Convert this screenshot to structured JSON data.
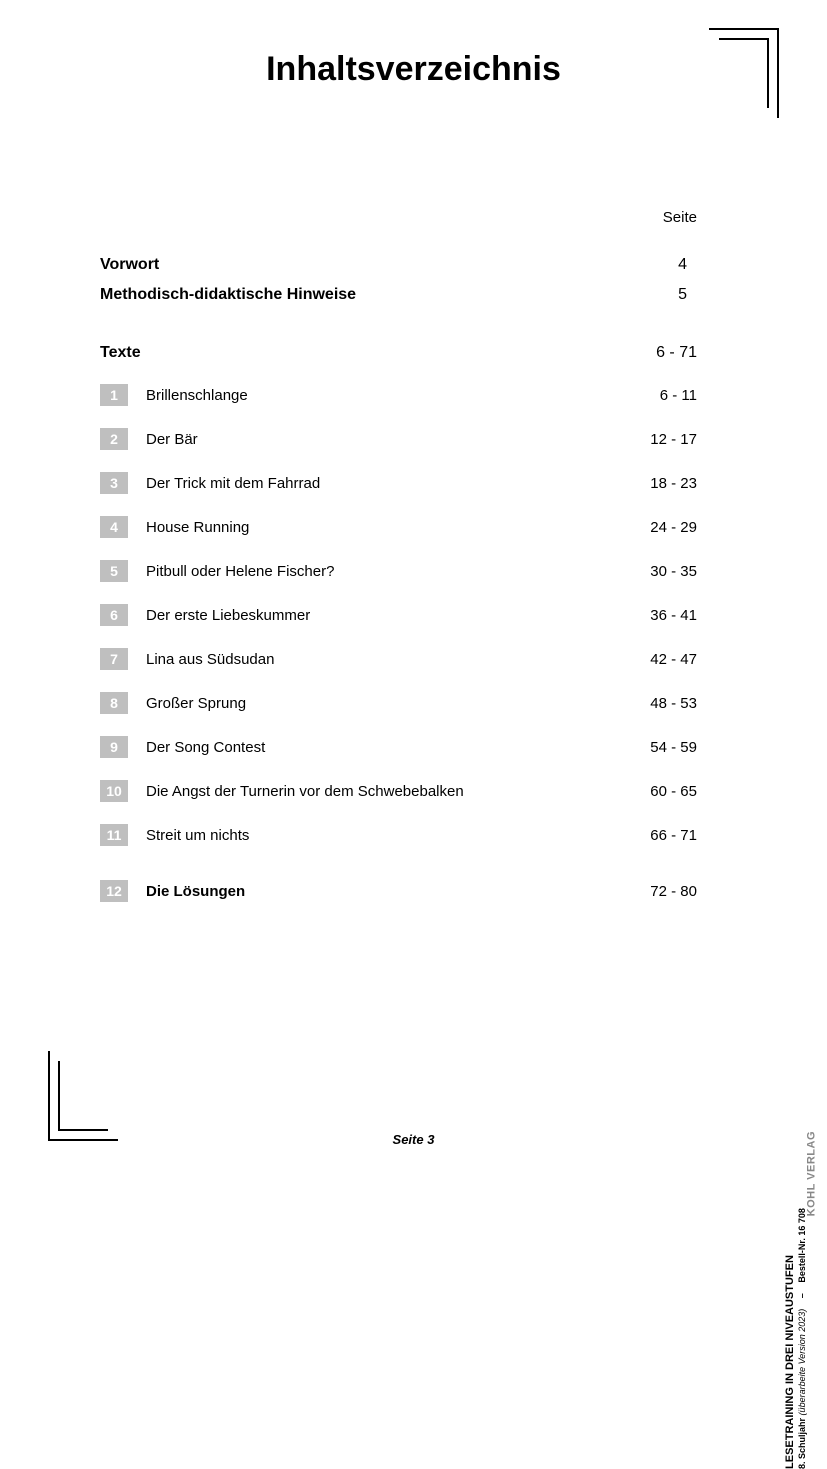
{
  "title": "Inhaltsverzeichnis",
  "page_header": "Seite",
  "front_matter": [
    {
      "title": "Vorwort",
      "page": "4"
    },
    {
      "title": "Methodisch-didaktische Hinweise",
      "page": "5"
    }
  ],
  "section": {
    "title": "Texte",
    "page": "6 - 71"
  },
  "chapters": [
    {
      "num": "1",
      "title": "Brillenschlange",
      "page": "6 - 11",
      "bold": false
    },
    {
      "num": "2",
      "title": "Der Bär",
      "page": "12 - 17",
      "bold": false
    },
    {
      "num": "3",
      "title": "Der Trick mit dem Fahrrad",
      "page": "18 - 23",
      "bold": false
    },
    {
      "num": "4",
      "title": "House Running",
      "page": "24 - 29",
      "bold": false
    },
    {
      "num": "5",
      "title": "Pitbull oder Helene Fischer?",
      "page": "30 - 35",
      "bold": false
    },
    {
      "num": "6",
      "title": "Der erste Liebeskummer",
      "page": "36 - 41",
      "bold": false
    },
    {
      "num": "7",
      "title": "Lina aus Südsudan",
      "page": "42 - 47",
      "bold": false
    },
    {
      "num": "8",
      "title": "Großer Sprung",
      "page": "48 - 53",
      "bold": false
    },
    {
      "num": "9",
      "title": "Der Song Contest",
      "page": "54 - 59",
      "bold": false
    },
    {
      "num": "10",
      "title": "Die Angst der Turnerin vor dem Schwebebalken",
      "page": "60 - 65",
      "bold": false
    },
    {
      "num": "11",
      "title": "Streit um nichts",
      "page": "66 - 71",
      "bold": false
    },
    {
      "num": "12",
      "title": "Die Lösungen",
      "page": "72 - 80",
      "bold": true
    }
  ],
  "footer": "Seite 3",
  "side": {
    "line1": "LESETRAINING IN DREI NIVEAUSTUFEN",
    "line2_a": "8. Schuljahr",
    "line2_b": "(überarbeite Version 2023)",
    "order_label": "Bestell-Nr. 16 708"
  },
  "publisher": "KOHL VERLAG",
  "colors": {
    "numbox_bg": "#bfbfbf",
    "numbox_fg": "#ffffff",
    "text": "#000000",
    "background": "#ffffff"
  }
}
